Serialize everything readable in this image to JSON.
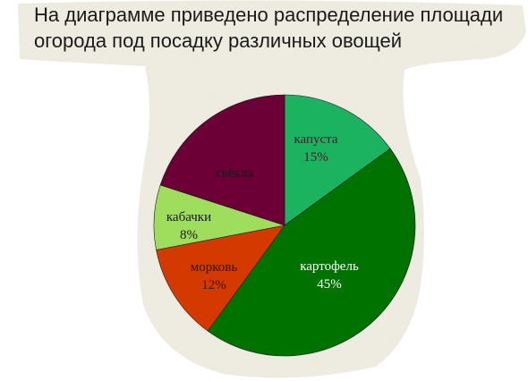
{
  "title": "На диаграмме приведено распределение площади огорода под посадку различных овощей",
  "chart_data": {
    "type": "pie",
    "title": "На диаграмме приведено распределение площади огорода под посадку различных овощей",
    "legend": "none",
    "start": "12 o'clock",
    "direction": "clockwise",
    "slices": [
      {
        "label": "капуста",
        "value_label": "15%",
        "value": 15,
        "color": "#1bb35f",
        "text_color": "#5a1236"
      },
      {
        "label": "картофель",
        "value_label": "45%",
        "value": 45,
        "color": "#007200",
        "text_color": "#ffffff"
      },
      {
        "label": "морковь",
        "value_label": "12%",
        "value": 12,
        "color": "#d43a00",
        "text_color": "#3b1300"
      },
      {
        "label": "кабачки",
        "value_label": "8%",
        "value": 8,
        "color": "#9fdd5d",
        "text_color": "#1a1a1a"
      },
      {
        "label": "свёкла",
        "value_label": "",
        "value": 20,
        "color": "#6a0035",
        "text_color": "#1a1a1a"
      }
    ]
  }
}
